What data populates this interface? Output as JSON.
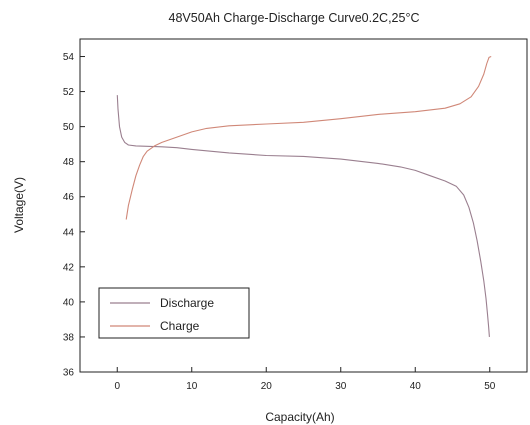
{
  "chart_data": {
    "type": "line",
    "title": "48V50Ah Charge-Discharge Curve0.2C,25°C",
    "xlabel": "Capacity(Ah)",
    "ylabel": "Voltage(V)",
    "xlim": [
      -5,
      55
    ],
    "ylim": [
      36,
      55
    ],
    "xticks": [
      0,
      10,
      20,
      30,
      40,
      50
    ],
    "yticks": [
      36,
      38,
      40,
      42,
      44,
      46,
      48,
      50,
      52,
      54
    ],
    "legend_position": "lower-left",
    "grid": false,
    "series": [
      {
        "name": "Discharge",
        "color": "#9a7f8f",
        "x": [
          0,
          0.1,
          0.3,
          0.6,
          1.0,
          1.5,
          2.5,
          4,
          6,
          8,
          10,
          15,
          20,
          25,
          30,
          35,
          38,
          40,
          42,
          44,
          45.5,
          46.5,
          47.2,
          47.8,
          48.3,
          48.8,
          49.2,
          49.5,
          49.7,
          49.85,
          49.95
        ],
        "y": [
          51.8,
          51.0,
          50.0,
          49.4,
          49.1,
          48.95,
          48.9,
          48.88,
          48.85,
          48.8,
          48.7,
          48.5,
          48.35,
          48.3,
          48.15,
          47.9,
          47.7,
          47.5,
          47.2,
          46.9,
          46.6,
          46.1,
          45.4,
          44.5,
          43.5,
          42.3,
          41.2,
          40.2,
          39.3,
          38.6,
          38.0
        ]
      },
      {
        "name": "Charge",
        "color": "#d08878",
        "x": [
          1.2,
          1.5,
          2,
          2.5,
          3,
          3.5,
          4,
          5,
          6,
          8,
          10,
          12,
          15,
          20,
          25,
          30,
          35,
          40,
          44,
          46,
          47.5,
          48.5,
          49.2,
          49.6,
          49.9,
          50.2
        ],
        "y": [
          44.7,
          45.5,
          46.4,
          47.2,
          47.8,
          48.3,
          48.6,
          48.9,
          49.1,
          49.4,
          49.7,
          49.9,
          50.05,
          50.15,
          50.25,
          50.45,
          50.7,
          50.85,
          51.05,
          51.3,
          51.7,
          52.3,
          53.0,
          53.6,
          53.95,
          54.0
        ]
      }
    ]
  }
}
